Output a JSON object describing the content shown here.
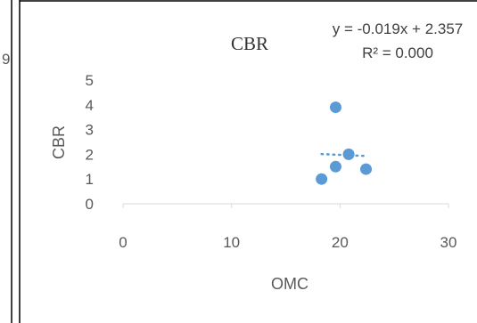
{
  "page": {
    "left_fragment_text": "9"
  },
  "chart_data": {
    "type": "scatter",
    "title": "CBR",
    "xlabel": "OMC",
    "ylabel": "CBR",
    "xlim": [
      0,
      30
    ],
    "ylim": [
      0,
      5
    ],
    "x_ticks": [
      "0",
      "10",
      "20",
      "30"
    ],
    "y_ticks": [
      "0",
      "1",
      "2",
      "3",
      "4",
      "5"
    ],
    "grid": false,
    "legend": "none",
    "series": [
      {
        "points": [
          {
            "x": 18.3,
            "y": 1.0
          },
          {
            "x": 19.6,
            "y": 1.5
          },
          {
            "x": 19.6,
            "y": 3.9
          },
          {
            "x": 20.8,
            "y": 2.0
          },
          {
            "x": 22.4,
            "y": 1.4
          }
        ],
        "color": "#5b9bd5"
      }
    ],
    "trendline": {
      "type": "linear",
      "color": "#5b9bd5",
      "x_range": [
        18.3,
        22.4
      ],
      "equation": "y = -0.019x + 2.357",
      "r_squared": "R² = 0.000"
    }
  }
}
